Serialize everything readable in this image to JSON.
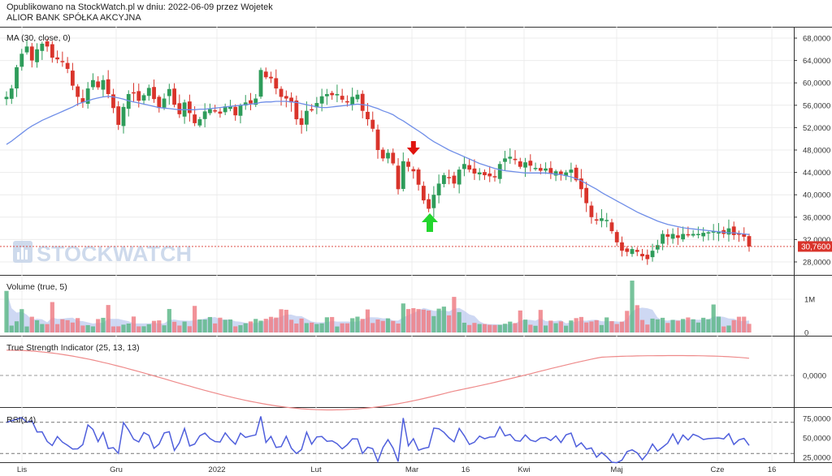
{
  "header": {
    "line1": "Opublikowano na StockWatch.pl w dniu: 2022-06-09 przez Wojetek",
    "line2": "ALIOR BANK SPÓŁKA AKCYJNA"
  },
  "watermark": "STOCKWATCH",
  "chart_data": [
    {
      "type": "candlestick",
      "label": "MA (30, close, 0)",
      "x_ticks": [
        "Lis",
        "Gru",
        "2022",
        "Lut",
        "Mar",
        "16",
        "Kwi",
        "Maj",
        "Cze",
        "16"
      ],
      "y_ticks": [
        "68,0000",
        "64,0000",
        "60,0000",
        "56,0000",
        "52,0000",
        "48,0000",
        "44,0000",
        "40,0000",
        "36,0000",
        "32,0000",
        "28,0000"
      ],
      "ylim": [
        26000,
        70000
      ],
      "last_price": 30760,
      "last_price_label": "30,7600",
      "colors": {
        "up": "#2e9c5a",
        "down": "#d9342b",
        "ma": "#6f8ee8",
        "last_line": "#d9342b"
      },
      "arrows": [
        {
          "type": "sell",
          "color": "#e0140e"
        },
        {
          "type": "buy",
          "color": "#22d62d"
        }
      ],
      "close": [
        57500,
        59000,
        62800,
        65200,
        66500,
        64000,
        66000,
        67000,
        66500,
        64500,
        64200,
        63800,
        62500,
        59500,
        57500,
        56500,
        59000,
        60500,
        59200,
        60500,
        58000,
        55500,
        52500,
        55700,
        58000,
        58200,
        56800,
        57800,
        59100,
        57100,
        55500,
        57200,
        58900,
        56100,
        54400,
        56500,
        54600,
        52800,
        53500,
        54900,
        55300,
        55000,
        54500,
        55800,
        55800,
        54200,
        56000,
        56500,
        56300,
        57200,
        62300,
        61000,
        60800,
        59000,
        57500,
        57200,
        56500,
        53500,
        52500,
        55000,
        55200,
        56400,
        57600,
        58000,
        57800,
        58000,
        57000,
        56500,
        57500,
        57900,
        55000,
        53500,
        51800,
        48000,
        46500,
        47500,
        45600,
        41000,
        46000,
        45000,
        44200,
        41800,
        39000,
        37500,
        40000,
        42000,
        43500,
        43000,
        42000,
        44500,
        45500,
        44500,
        43800,
        44000,
        43500,
        43300,
        43200,
        45500,
        46500,
        46800,
        46200,
        45000,
        45800,
        45200,
        44800,
        44300,
        44700,
        43800,
        44200,
        43700,
        44000,
        44500,
        42600,
        41000,
        38500,
        36000,
        35500,
        35800,
        35500,
        33500,
        31500,
        30000,
        29800,
        30300,
        29800,
        29000,
        28500,
        30000,
        31000,
        33000,
        32500,
        33000,
        32300,
        33000,
        32800,
        33000,
        33000,
        33200,
        33300,
        33500,
        33300,
        33000,
        34000,
        32800,
        33000,
        32500,
        30760
      ],
      "ma": [
        49000,
        49600,
        50300,
        51000,
        51700,
        52300,
        52800,
        53300,
        53700,
        54100,
        54500,
        54900,
        55300,
        55700,
        56200,
        56500,
        56800,
        57100,
        57300,
        57500,
        57600,
        57500,
        57300,
        57100,
        56800,
        56600,
        56400,
        56200,
        56000,
        55800,
        55600,
        55500,
        55400,
        55300,
        55200,
        55200,
        55200,
        55200,
        55300,
        55300,
        55400,
        55500,
        55600,
        55700,
        55800,
        55900,
        56000,
        56100,
        56200,
        56300,
        56500,
        56600,
        56600,
        56700,
        56700,
        56700,
        56600,
        56500,
        56300,
        56100,
        55900,
        55700,
        55600,
        55600,
        55700,
        55800,
        55900,
        56000,
        56100,
        56200,
        56100,
        56000,
        55700,
        55400,
        55000,
        54700,
        54300,
        53700,
        53200,
        52600,
        52000,
        51400,
        50800,
        50100,
        49500,
        49000,
        48500,
        48000,
        47600,
        47200,
        46800,
        46400,
        46000,
        45600,
        45300,
        45000,
        44700,
        44500,
        44300,
        44200,
        44100,
        44000,
        43900,
        43900,
        43900,
        43900,
        43900,
        43800,
        43700,
        43600,
        43400,
        43200,
        42900,
        42500,
        42000,
        41500,
        41000,
        40400,
        39900,
        39400,
        38900,
        38400,
        37900,
        37400,
        36900,
        36500,
        36100,
        35700,
        35300,
        35000,
        34700,
        34500,
        34300,
        34100,
        34000,
        33900,
        33800,
        33700,
        33600,
        33500,
        33400,
        33300,
        33200,
        33200,
        33100,
        33000,
        32900
      ]
    },
    {
      "type": "bar",
      "label": "Volume (true, 5)",
      "y_ticks": [
        "1M",
        "0"
      ],
      "ylim": [
        0,
        1600000
      ],
      "colors": {
        "up": "#5fb98a",
        "down": "#ee7f86",
        "avg": "#b9c8ee"
      }
    },
    {
      "type": "line",
      "label": "True Strength Indicator (25, 13, 13)",
      "y_ticks": [
        "0,0000"
      ],
      "ylim": [
        -15,
        15
      ],
      "colors": {
        "line": "#ee8a8a"
      }
    },
    {
      "type": "line",
      "label": "RSI(14)",
      "y_ticks": [
        "75,0000",
        "50,0000",
        "25,0000"
      ],
      "ylim": [
        15,
        85
      ],
      "ref_lines": [
        70,
        30
      ],
      "colors": {
        "line": "#4f5fdc"
      }
    }
  ]
}
